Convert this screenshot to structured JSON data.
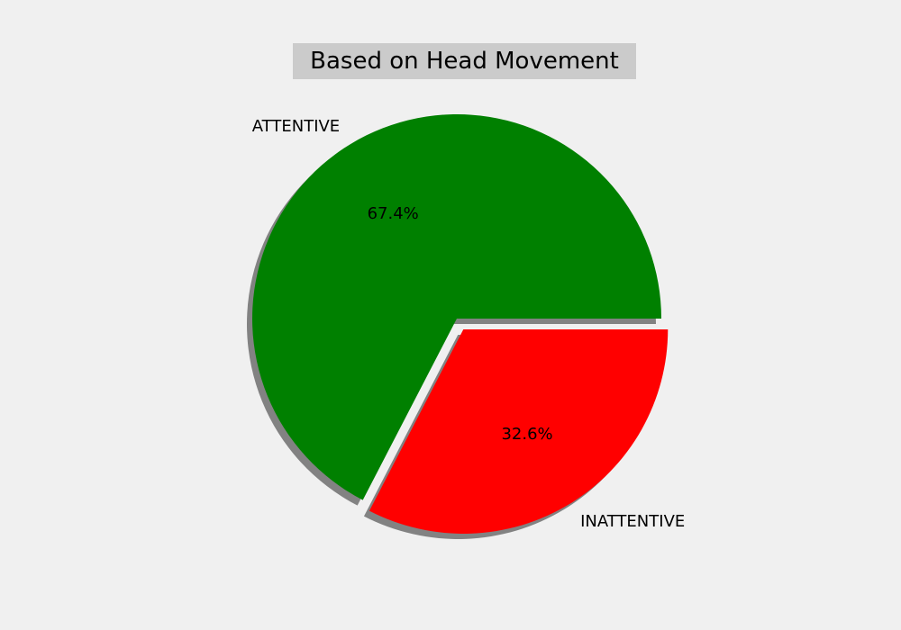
{
  "chart_data": {
    "type": "pie",
    "title": "Based on Head Movement",
    "slices": [
      {
        "label": "ATTENTIVE",
        "value": 67.4,
        "pct_label": "67.4%",
        "color": "#008000",
        "exploded": false
      },
      {
        "label": "INATTENTIVE",
        "value": 32.6,
        "pct_label": "32.6%",
        "color": "#ff0000",
        "exploded": true
      }
    ],
    "shadow": true,
    "start_angle": 0,
    "direction": "counterclockwise"
  },
  "colors": {
    "background": "#f0f0f0",
    "title_box": "#cbcbcb",
    "shadow": "#6e6e6e"
  }
}
